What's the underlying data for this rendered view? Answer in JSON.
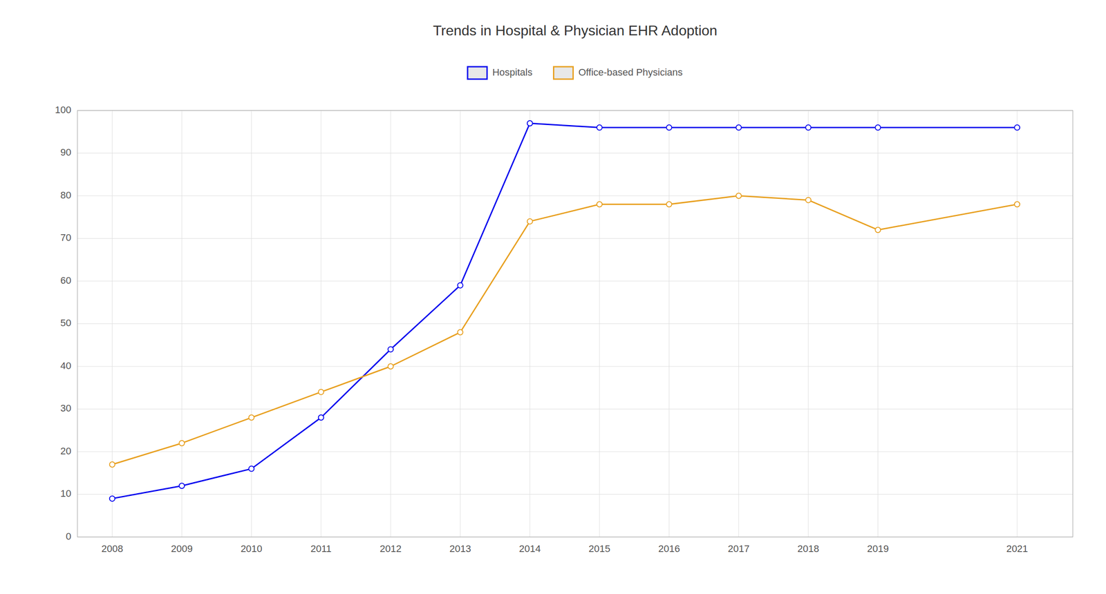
{
  "chart_data": {
    "type": "line",
    "title": "Trends in Hospital & Physician EHR Adoption",
    "x": [
      2008,
      2009,
      2010,
      2011,
      2012,
      2013,
      2014,
      2015,
      2016,
      2017,
      2018,
      2019,
      2021
    ],
    "series": [
      {
        "name": "Hospitals",
        "color": "#0000EE",
        "marker": "circle",
        "values": [
          9,
          12,
          16,
          28,
          44,
          59,
          97,
          96,
          96,
          96,
          96,
          96,
          96
        ]
      },
      {
        "name": "Office-based Physicians",
        "color": "#E8A020",
        "marker": "circle",
        "values": [
          17,
          22,
          28,
          34,
          40,
          48,
          74,
          78,
          78,
          80,
          79,
          72,
          78
        ]
      }
    ],
    "xlim": [
      2007.5,
      2021.8
    ],
    "xticks": [
      2008,
      2009,
      2010,
      2011,
      2012,
      2013,
      2014,
      2015,
      2016,
      2017,
      2018,
      2019,
      2021
    ],
    "ylim": [
      0,
      100
    ],
    "yticks": [
      0,
      10,
      20,
      30,
      40,
      50,
      60,
      70,
      80,
      90,
      100
    ],
    "grid": true,
    "legend": "top"
  }
}
